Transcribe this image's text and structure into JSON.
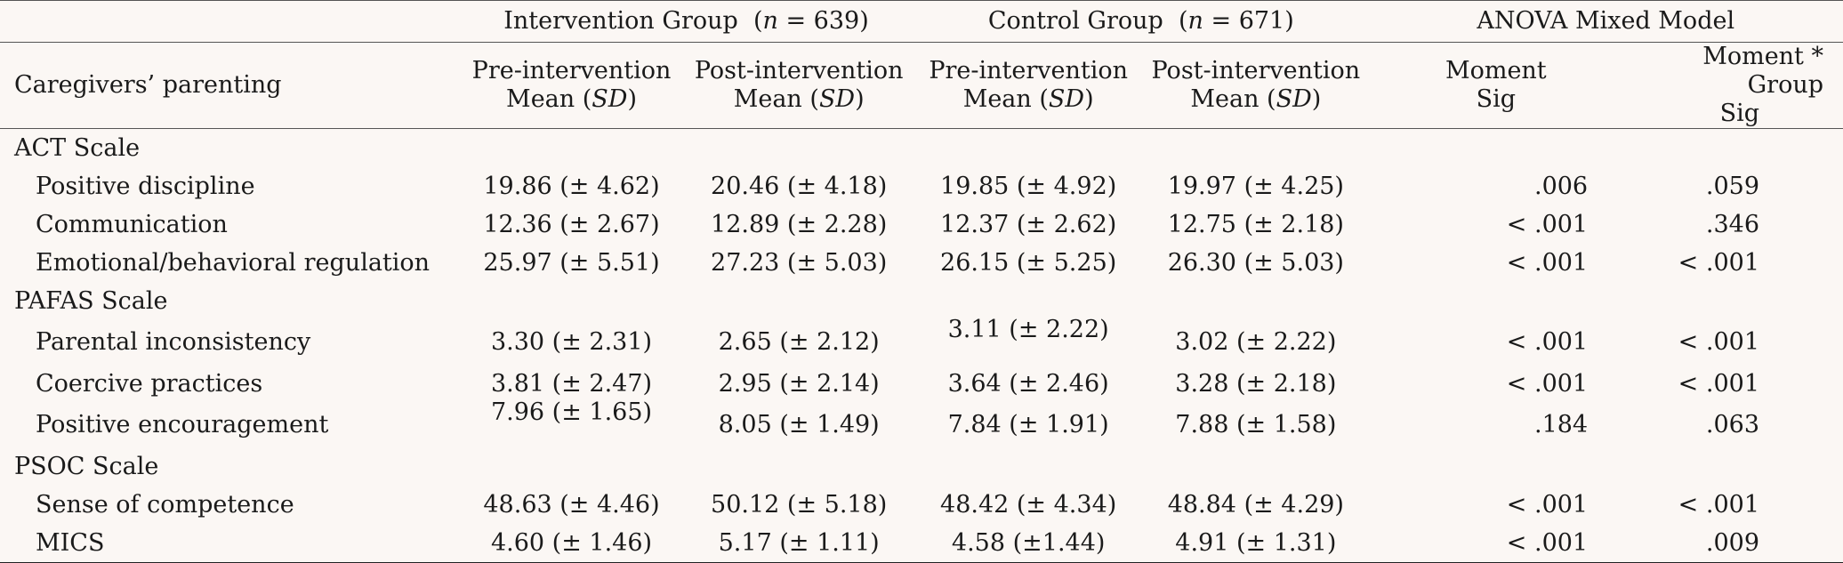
{
  "header": {
    "group1": "Intervention Group",
    "group1_n_label": "n",
    "group1_n_value": " = 639",
    "group2": "Control Group",
    "group2_n_label": "n",
    "group2_n_value": " = 671",
    "group3": "ANOVA  Mixed Model",
    "row_label": "Caregivers’ parenting",
    "col_pre": "Pre-intervention",
    "col_post": "Post-intervention",
    "col_mean": "Mean (",
    "col_sd": "SD",
    "col_close": ")",
    "col_moment": "Moment",
    "col_moment_group": "Moment * Group",
    "col_sig": "Sig"
  },
  "sections": [
    {
      "title": "ACT Scale",
      "rows": [
        {
          "label": "Positive discipline",
          "ig_pre": "19.86 (± 4.62)",
          "ig_post": "20.46 (± 4.18)",
          "cg_pre": "19.85 (± 4.92)",
          "cg_post": "19.97 (± 4.25)",
          "moment": ".006",
          "moment_group": ".059"
        },
        {
          "label": "Communication",
          "ig_pre": "12.36 (± 2.67)",
          "ig_post": "12.89 (± 2.28)",
          "cg_pre": "12.37 (± 2.62)",
          "cg_post": "12.75 (± 2.18)",
          "moment": "< .001",
          "moment_group": ".346"
        },
        {
          "label": "Emotional/behavioral regulation",
          "ig_pre": "25.97 (± 5.51)",
          "ig_post": "27.23 (± 5.03)",
          "cg_pre": "26.15 (± 5.25)",
          "cg_post": "26.30 (± 5.03)",
          "moment": "< .001",
          "moment_group": "< .001"
        }
      ]
    },
    {
      "title": "PAFAS Scale",
      "rows": [
        {
          "label": "Parental inconsistency",
          "ig_pre": "3.30 (± 2.31)",
          "ig_post": "2.65 (± 2.12)",
          "cg_pre": "3.11 (± 2.22)",
          "cg_post": "3.02 (± 2.22)",
          "moment": "< .001",
          "moment_group": "< .001"
        },
        {
          "label": "Coercive practices",
          "ig_pre": "3.81 (± 2.47)",
          "ig_post": "2.95 (± 2.14)",
          "cg_pre": "3.64 (± 2.46)",
          "cg_post": "3.28 (± 2.18)",
          "moment": "< .001",
          "moment_group": "< .001"
        },
        {
          "label": "Positive encouragement",
          "ig_pre": "7.96 (± 1.65)",
          "ig_post": "8.05 (± 1.49)",
          "cg_pre": "7.84 (± 1.91)",
          "cg_post": "7.88 (± 1.58)",
          "moment": ".184",
          "moment_group": ".063"
        }
      ]
    },
    {
      "title": "PSOC Scale",
      "rows": [
        {
          "label": "Sense of competence",
          "ig_pre": "48.63 (± 4.46)",
          "ig_post": "50.12 (± 5.18)",
          "cg_pre": "48.42 (± 4.34)",
          "cg_post": "48.84 (± 4.29)",
          "moment": "< .001",
          "moment_group": "< .001"
        },
        {
          "label": "MICS",
          "ig_pre": "4.60 (± 1.46)",
          "ig_post": "5.17 (± 1.11)",
          "cg_pre": "4.58 (±1.44)",
          "cg_post": "4.91 (± 1.31)",
          "moment": "< .001",
          "moment_group": ".009"
        }
      ]
    }
  ]
}
